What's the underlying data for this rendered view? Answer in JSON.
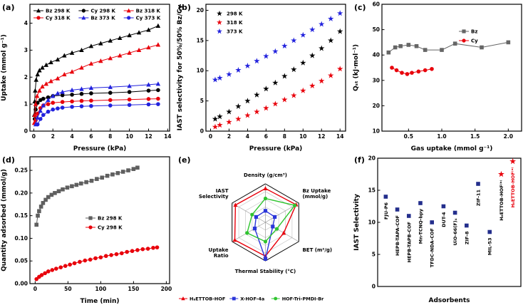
{
  "figure": {
    "background": "#ffffff"
  },
  "chart_data": [
    {
      "id": "a",
      "panel_label": "(a)",
      "type": "scatter",
      "title": "",
      "xlabel": "Pressure (kPa)",
      "ylabel": "Uptake (mmol g⁻¹)",
      "xlim": [
        -0.4,
        14.2
      ],
      "ylim": [
        0,
        4.7
      ],
      "xticks": [
        0,
        2,
        4,
        6,
        8,
        10,
        12,
        14
      ],
      "yticks": [
        0,
        1,
        2,
        3,
        4
      ],
      "xdec": 0,
      "ydec": 0,
      "legend": {
        "pos": "top-grid",
        "cols": 3
      },
      "series": [
        {
          "name": "Bz 298 K",
          "color": "#000000",
          "marker": "triangle",
          "line": true,
          "x": [
            0.05,
            0.1,
            0.15,
            0.25,
            0.4,
            0.6,
            0.9,
            1.3,
            1.8,
            2.5,
            3.2,
            4,
            5,
            6,
            7,
            8,
            9,
            10,
            11,
            12,
            13
          ],
          "y": [
            0.6,
            1.1,
            1.5,
            1.9,
            2.1,
            2.25,
            2.35,
            2.45,
            2.55,
            2.65,
            2.8,
            2.9,
            3.0,
            3.15,
            3.25,
            3.35,
            3.45,
            3.55,
            3.65,
            3.75,
            3.9
          ]
        },
        {
          "name": "Cy 298 K",
          "color": "#000000",
          "marker": "circle",
          "line": true,
          "x": [
            0.1,
            0.2,
            0.4,
            0.7,
            1,
            1.5,
            2,
            3,
            4,
            5,
            6,
            8,
            10,
            12,
            13
          ],
          "y": [
            0.45,
            0.8,
            1.05,
            1.15,
            1.2,
            1.25,
            1.3,
            1.33,
            1.35,
            1.38,
            1.4,
            1.42,
            1.45,
            1.5,
            1.52
          ]
        },
        {
          "name": "Bz 318 K",
          "color": "#e8000b",
          "marker": "triangle",
          "line": true,
          "x": [
            0.05,
            0.1,
            0.2,
            0.35,
            0.6,
            0.9,
            1.3,
            1.8,
            2.5,
            3.2,
            4,
            5,
            6,
            7,
            8,
            9,
            10,
            11,
            12,
            13
          ],
          "y": [
            0.3,
            0.6,
            1.0,
            1.3,
            1.5,
            1.65,
            1.75,
            1.85,
            1.95,
            2.1,
            2.2,
            2.35,
            2.5,
            2.6,
            2.7,
            2.8,
            2.9,
            3.0,
            3.1,
            3.2
          ]
        },
        {
          "name": "Cy 318 K",
          "color": "#e8000b",
          "marker": "circle",
          "line": true,
          "x": [
            0.2,
            0.4,
            0.7,
            1,
            1.5,
            2,
            3,
            4,
            5,
            6,
            8,
            10,
            12,
            13
          ],
          "y": [
            0.4,
            0.65,
            0.85,
            0.95,
            1.0,
            1.05,
            1.08,
            1.1,
            1.12,
            1.13,
            1.15,
            1.17,
            1.19,
            1.2
          ]
        },
        {
          "name": "Bz 373 K",
          "color": "#2222dd",
          "marker": "triangle",
          "line": true,
          "x": [
            0.2,
            0.4,
            0.7,
            1,
            1.5,
            2,
            2.5,
            3,
            4,
            5,
            6,
            8,
            10,
            12,
            13
          ],
          "y": [
            0.25,
            0.5,
            0.75,
            0.95,
            1.15,
            1.3,
            1.4,
            1.45,
            1.52,
            1.56,
            1.6,
            1.63,
            1.67,
            1.72,
            1.75
          ]
        },
        {
          "name": "Cy 373 K",
          "color": "#2222dd",
          "marker": "circle",
          "line": true,
          "x": [
            0.4,
            0.7,
            1,
            1.5,
            2,
            2.5,
            3,
            4,
            5,
            6,
            8,
            10,
            12,
            13
          ],
          "y": [
            0.25,
            0.45,
            0.6,
            0.72,
            0.8,
            0.84,
            0.87,
            0.9,
            0.92,
            0.93,
            0.95,
            0.97,
            0.99,
            1.0
          ]
        }
      ]
    },
    {
      "id": "b",
      "panel_label": "(b)",
      "type": "scatter",
      "xlabel": "Pressure (kPa)",
      "ylabel": "IAST selectivity for 50%/50% Bz/Cy",
      "xlim": [
        -0.5,
        14.6
      ],
      "ylim": [
        0,
        21
      ],
      "xticks": [
        0,
        2,
        4,
        6,
        8,
        10,
        12,
        14
      ],
      "yticks": [
        0,
        5,
        10,
        15,
        20
      ],
      "xdec": 0,
      "ydec": 0,
      "legend": {
        "pos": "top-left"
      },
      "series": [
        {
          "name": "298 K",
          "color": "#000000",
          "marker": "star",
          "line": false,
          "x": [
            0.5,
            1,
            2,
            3,
            4,
            5,
            6,
            7,
            8,
            9,
            10,
            11,
            12,
            13,
            14
          ],
          "y": [
            2.0,
            2.4,
            3.2,
            4.1,
            5.0,
            6.0,
            7.0,
            8.0,
            9.1,
            10.2,
            11.3,
            12.5,
            13.7,
            15.0,
            16.5
          ]
        },
        {
          "name": "318 K",
          "color": "#e8000b",
          "marker": "star",
          "line": false,
          "x": [
            0.5,
            1,
            2,
            3,
            4,
            5,
            6,
            7,
            8,
            9,
            10,
            11,
            12,
            13,
            14
          ],
          "y": [
            0.7,
            1.0,
            1.5,
            2.0,
            2.6,
            3.2,
            3.8,
            4.5,
            5.2,
            5.9,
            6.7,
            7.5,
            8.3,
            9.2,
            10.3
          ]
        },
        {
          "name": "373 K",
          "color": "#2222dd",
          "marker": "star",
          "line": false,
          "x": [
            0.5,
            1,
            2,
            3,
            4,
            5,
            6,
            7,
            8,
            9,
            10,
            11,
            12,
            13,
            14
          ],
          "y": [
            8.5,
            8.8,
            9.4,
            10.1,
            10.8,
            11.6,
            12.4,
            13.2,
            14.1,
            15.0,
            15.9,
            16.8,
            17.7,
            18.6,
            19.5
          ]
        }
      ]
    },
    {
      "id": "c",
      "panel_label": "(c)",
      "type": "scatter",
      "xlabel": "Gas uptake (mmol g⁻¹)",
      "ylabel": "Qₛₜ (kJ·mol⁻¹)",
      "xlim": [
        0.1,
        2.2
      ],
      "ylim": [
        10,
        60
      ],
      "xticks": [
        0.5,
        1.0,
        1.5,
        2.0
      ],
      "yticks": [
        10,
        20,
        30,
        40,
        50,
        60
      ],
      "xdec": 1,
      "ydec": 0,
      "legend": {
        "pos": "top-right"
      },
      "series": [
        {
          "name": "Bz",
          "color": "#666666",
          "marker": "square",
          "line": true,
          "x": [
            0.2,
            0.3,
            0.38,
            0.5,
            0.62,
            0.75,
            1.0,
            1.2,
            1.6,
            2.0
          ],
          "y": [
            41,
            43,
            43.5,
            44,
            43.5,
            42,
            42,
            44.5,
            43,
            45
          ]
        },
        {
          "name": "Cy",
          "color": "#e8000b",
          "marker": "circle",
          "line": true,
          "x": [
            0.25,
            0.32,
            0.4,
            0.48,
            0.55,
            0.65,
            0.75,
            0.85
          ],
          "y": [
            35,
            34,
            33,
            32.5,
            33,
            33.5,
            34,
            34.5
          ]
        }
      ]
    },
    {
      "id": "d",
      "panel_label": "(d)",
      "type": "scatter",
      "xlabel": "Time (min)",
      "ylabel": "Quantity adsorbed (mmol/g)",
      "xlim": [
        -8,
        205
      ],
      "ylim": [
        0,
        0.28
      ],
      "xticks": [
        0,
        50,
        100,
        150,
        200
      ],
      "yticks": [
        0,
        0.05,
        0.1,
        0.15,
        0.2,
        0.25
      ],
      "xdec": 0,
      "ydec": 2,
      "legend": {
        "pos": "mid-right"
      },
      "series": [
        {
          "name": "Bz 298 K",
          "color": "#5f5f5f",
          "marker": "square",
          "line": true,
          "x": [
            2,
            4,
            6,
            9,
            12,
            16,
            20,
            25,
            30,
            36,
            42,
            49,
            56,
            63,
            70,
            78,
            86,
            94,
            102,
            110,
            118,
            126,
            134,
            142,
            150,
            156
          ],
          "y": [
            0.13,
            0.15,
            0.16,
            0.17,
            0.178,
            0.185,
            0.191,
            0.196,
            0.2,
            0.204,
            0.208,
            0.212,
            0.215,
            0.218,
            0.221,
            0.224,
            0.227,
            0.231,
            0.234,
            0.238,
            0.241,
            0.244,
            0.247,
            0.25,
            0.253,
            0.256
          ]
        },
        {
          "name": "Cy 298 K",
          "color": "#e8000b",
          "marker": "circle",
          "line": true,
          "x": [
            2,
            6,
            10,
            15,
            20,
            26,
            32,
            39,
            46,
            53,
            60,
            68,
            76,
            84,
            92,
            100,
            108,
            116,
            124,
            132,
            140,
            148,
            156,
            164,
            172,
            180,
            186
          ],
          "y": [
            0.01,
            0.015,
            0.019,
            0.023,
            0.027,
            0.03,
            0.033,
            0.036,
            0.039,
            0.042,
            0.045,
            0.048,
            0.051,
            0.053,
            0.056,
            0.058,
            0.061,
            0.063,
            0.065,
            0.067,
            0.07,
            0.072,
            0.074,
            0.076,
            0.077,
            0.079,
            0.08
          ]
        }
      ]
    },
    {
      "id": "e",
      "panel_label": "(e)",
      "type": "radar",
      "levels": 5,
      "axes": [
        "Density (g/cm³)",
        "Bz Uptake\n(mmol/g)",
        "BET (m²/g)",
        "Thermal Stability (°C)",
        "Uptake\nRatio",
        "IAST\nSelectivity"
      ],
      "series": [
        {
          "name": "H₈ETTOB-HOF",
          "color": "#e8000b",
          "marker": "triangle",
          "values": [
            0.88,
            0.92,
            0.55,
            0.88,
            0.92,
            0.9
          ]
        },
        {
          "name": "X-HOF-4a",
          "color": "#2a35d9",
          "marker": "square",
          "values": [
            0.3,
            0.28,
            0.22,
            0.95,
            0.32,
            0.28
          ]
        },
        {
          "name": "HOF-Tri-PMDI-Br",
          "color": "#2fc42f",
          "marker": "circle",
          "values": [
            0.62,
            0.88,
            0.34,
            0.5,
            0.55,
            0.4
          ]
        }
      ]
    },
    {
      "id": "f",
      "panel_label": "(f)",
      "type": "cat-scatter",
      "xlabel": "Adsorbents",
      "ylabel": "IAST Selectivity",
      "ylim": [
        0,
        20
      ],
      "yticks": [
        0,
        5,
        10,
        15,
        20
      ],
      "points": [
        {
          "label": "FJU-P6",
          "value": 14,
          "color": "#232e8c",
          "marker": "square",
          "label_color": "#000000"
        },
        {
          "label": "HEPB-TAPA-COF",
          "value": 12,
          "color": "#232e8c",
          "marker": "square",
          "label_color": "#000000"
        },
        {
          "label": "HEPB-TAPB-COF",
          "value": 11,
          "color": "#232e8c",
          "marker": "square",
          "label_color": "#000000"
        },
        {
          "label": "Mn-TCNQ-bpy",
          "value": 13,
          "color": "#232e8c",
          "marker": "square",
          "label_color": "#000000"
        },
        {
          "label": "TFDC-NDA-COF",
          "value": 10,
          "color": "#232e8c",
          "marker": "square",
          "label_color": "#000000"
        },
        {
          "label": "DUT-4",
          "value": 12.5,
          "color": "#232e8c",
          "marker": "square",
          "label_color": "#000000"
        },
        {
          "label": "UiO-66(F)₄",
          "value": 11.5,
          "color": "#232e8c",
          "marker": "square",
          "label_color": "#000000"
        },
        {
          "label": "ZIF-8",
          "value": 9.5,
          "color": "#232e8c",
          "marker": "square",
          "label_color": "#000000"
        },
        {
          "label": "ZIF-11",
          "value": 16,
          "color": "#232e8c",
          "marker": "square",
          "label_color": "#000000"
        },
        {
          "label": "MIL-53",
          "value": 8.5,
          "color": "#232e8c",
          "marker": "square",
          "label_color": "#000000"
        },
        {
          "label": "H₈ETTOB-HOF⁽ᵇ⁾",
          "value": 17.5,
          "color": "#e8000b",
          "marker": "star",
          "label_color": "#000000"
        },
        {
          "label": "H₈ETTOB-HOF⁽ᵃ⁾",
          "value": 19.5,
          "color": "#e8000b",
          "marker": "star",
          "label_color": "#e8000b"
        }
      ]
    }
  ]
}
